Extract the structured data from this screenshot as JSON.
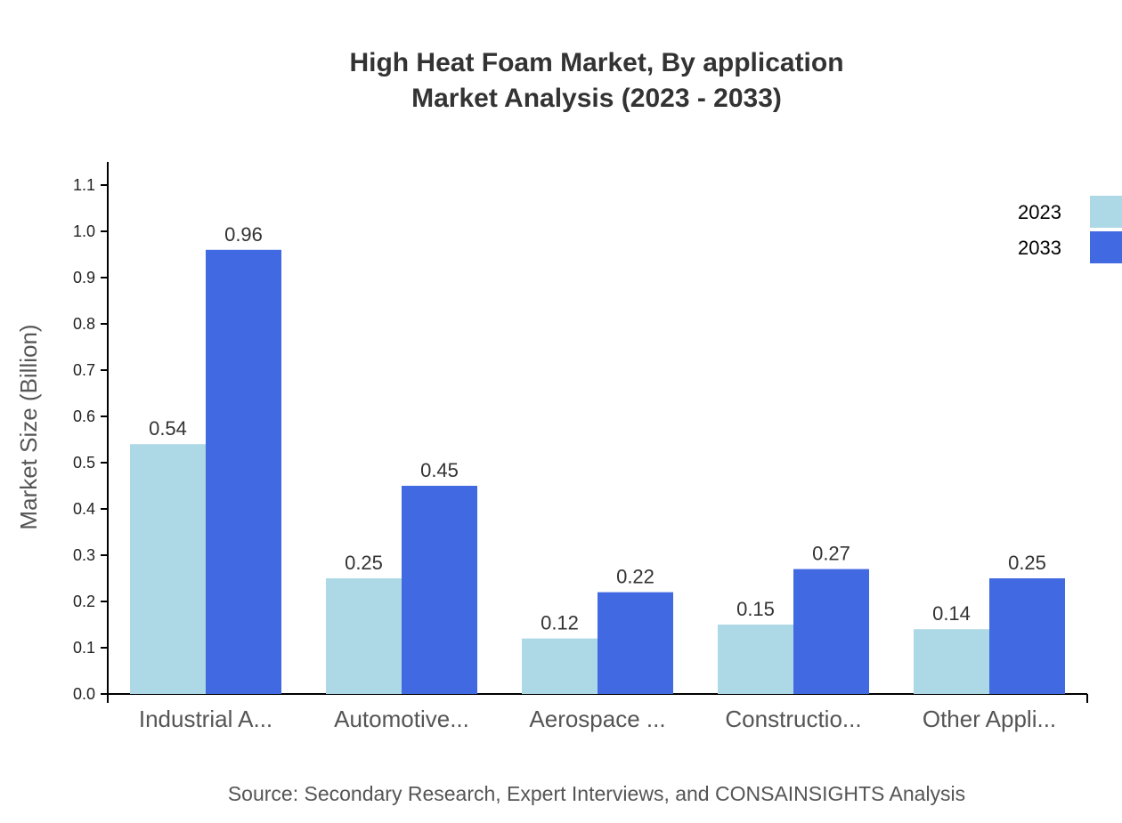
{
  "chart_data": {
    "type": "bar",
    "title": "High Heat Foam Market, By application",
    "subtitle": "Market Analysis (2023 - 2033)",
    "xlabel": "",
    "ylabel": "Market Size (Billion)",
    "ylim": [
      0,
      1.15
    ],
    "yticks": [
      "0.0",
      "0.1",
      "0.2",
      "0.3",
      "0.4",
      "0.5",
      "0.6",
      "0.7",
      "0.8",
      "0.9",
      "1.0",
      "1.1"
    ],
    "categories": [
      "Industrial A...",
      "Automotive...",
      "Aerospace ...",
      "Constructio...",
      "Other Appli..."
    ],
    "series": [
      {
        "name": "2023",
        "color": "#ADD8E6",
        "values": [
          0.54,
          0.25,
          0.12,
          0.15,
          0.14
        ],
        "labels": [
          "0.54",
          "0.25",
          "0.12",
          "0.15",
          "0.14"
        ]
      },
      {
        "name": "2033",
        "color": "#4169E1",
        "values": [
          0.96,
          0.45,
          0.22,
          0.27,
          0.25
        ],
        "labels": [
          "0.96",
          "0.45",
          "0.22",
          "0.27",
          "0.25"
        ]
      }
    ],
    "grid": false,
    "legend_placement": "top-right",
    "source": "Source: Secondary Research, Expert Interviews, and CONSAINSIGHTS Analysis"
  }
}
